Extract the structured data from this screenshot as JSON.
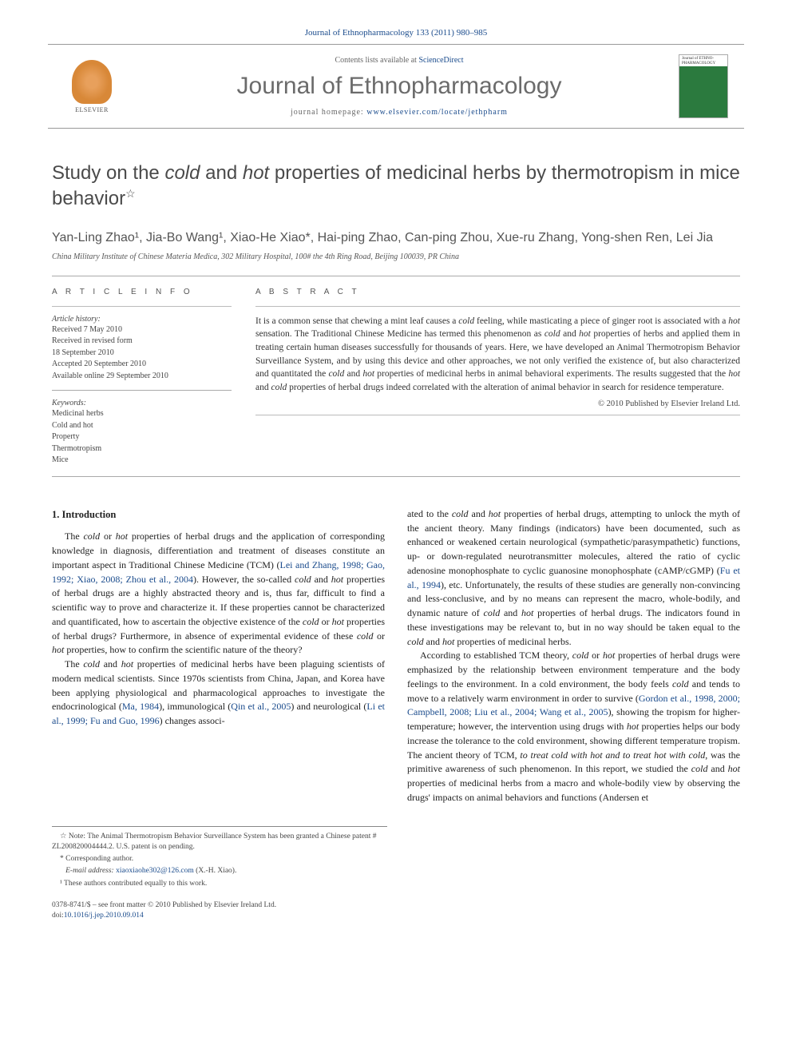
{
  "header": {
    "citation": "Journal of Ethnopharmacology 133 (2011) 980–985",
    "contents_prefix": "Contents lists available at ",
    "contents_link": "ScienceDirect",
    "journal_name": "Journal of Ethnopharmacology",
    "homepage_prefix": "journal homepage: ",
    "homepage_url": "www.elsevier.com/locate/jethpharm",
    "publisher_name": "ELSEVIER",
    "cover_caption": "Journal of ETHNO-PHARMACOLOGY"
  },
  "title": {
    "pre": "Study on the ",
    "cold": "cold",
    "and": " and ",
    "hot": "hot",
    "post": " properties of medicinal herbs by thermotropism in mice behavior",
    "star": "☆"
  },
  "authors": "Yan-Ling Zhao¹, Jia-Bo Wang¹, Xiao-He Xiao*, Hai-ping Zhao, Can-ping Zhou, Xue-ru Zhang, Yong-shen Ren, Lei Jia",
  "affiliation": "China Military Institute of Chinese Materia Medica, 302 Military Hospital, 100# the 4th Ring Road, Beijing 100039, PR China",
  "article_info": {
    "heading": "A R T I C L E   I N F O",
    "history_head": "Article history:",
    "received": "Received 7 May 2010",
    "revised": "Received in revised form",
    "revised_date": "18 September 2010",
    "accepted": "Accepted 20 September 2010",
    "online": "Available online 29 September 2010",
    "keywords_head": "Keywords:",
    "kw1": "Medicinal herbs",
    "kw2": "Cold and hot",
    "kw3": "Property",
    "kw4": "Thermotropism",
    "kw5": "Mice"
  },
  "abstract": {
    "heading": "A B S T R A C T",
    "text_parts": [
      "It is a common sense that chewing a mint leaf causes a ",
      "cold",
      " feeling, while masticating a piece of ginger root is associated with a ",
      "hot",
      " sensation. The Traditional Chinese Medicine has termed this phenomenon as ",
      "cold",
      " and ",
      "hot",
      " properties of herbs and applied them in treating certain human diseases successfully for thousands of years. Here, we have developed an Animal Thermotropism Behavior Surveillance System, and by using this device and other approaches, we not only verified the existence of, but also characterized and quantitated the ",
      "cold",
      " and ",
      "hot",
      " properties of medicinal herbs in animal behavioral experiments. The results suggested that the ",
      "hot",
      " and ",
      "cold",
      " properties of herbal drugs indeed correlated with the alteration of animal behavior in search for residence temperature."
    ],
    "copyright": "© 2010 Published by Elsevier Ireland Ltd."
  },
  "body": {
    "section_head": "1.  Introduction",
    "col1": {
      "p1_parts": [
        "The ",
        "cold",
        " or ",
        "hot",
        " properties of herbal drugs and the application of corresponding knowledge in diagnosis, differentiation and treatment of diseases constitute an important aspect in Traditional Chinese Medicine (TCM) (",
        "Lei and Zhang, 1998; Gao, 1992; Xiao, 2008; Zhou et al., 2004",
        "). However, the so-called ",
        "cold",
        " and ",
        "hot",
        " properties of herbal drugs are a highly abstracted theory and is, thus far, difficult to find a scientific way to prove and characterize it. If these properties cannot be characterized and quantificated, how to ascertain the objective existence of the ",
        "cold",
        " or ",
        "hot",
        " properties of herbal drugs? Furthermore, in absence of experimental evidence of these ",
        "cold",
        " or ",
        "hot",
        " properties, how to confirm the scientific nature of the theory?"
      ],
      "p2_parts": [
        "The ",
        "cold",
        " and ",
        "hot",
        " properties of medicinal herbs have been plaguing scientists of modern medical scientists. Since 1970s scientists from China, Japan, and Korea have been applying physiological and pharmacological approaches to investigate the endocrinological (",
        "Ma, 1984",
        "), immunological (",
        "Qin et al., 2005",
        ") and neurological (",
        "Li et al., 1999; Fu and Guo, 1996",
        ") changes associ-"
      ]
    },
    "col2": {
      "p1_parts": [
        "ated to the ",
        "cold",
        " and ",
        "hot",
        " properties of herbal drugs, attempting to unlock the myth of the ancient theory. Many findings (indicators) have been documented, such as enhanced or weakened certain neurological (sympathetic/parasympathetic) functions, up- or down-regulated neurotransmitter molecules, altered the ratio of cyclic adenosine monophosphate to cyclic guanosine monophosphate (cAMP/cGMP) (",
        "Fu et al., 1994",
        "), etc. Unfortunately, the results of these studies are generally non-convincing and less-conclusive, and by no means can represent the macro, whole-bodily, and dynamic nature of ",
        "cold",
        " and ",
        "hot",
        " properties of herbal drugs. The indicators found in these investigations may be relevant to, but in no way should be taken equal to the ",
        "cold",
        " and ",
        "hot",
        " properties of medicinal herbs."
      ],
      "p2_parts": [
        "According to established TCM theory, ",
        "cold",
        " or ",
        "hot",
        " properties of herbal drugs were emphasized by the relationship between environment temperature and the body feelings to the environment. In a cold environment, the body feels ",
        "cold",
        " and tends to move to a relatively warm environment in order to survive (",
        "Gordon et al., 1998, 2000; Campbell, 2008; Liu et al., 2004; Wang et al., 2005",
        "), showing the tropism for higher-temperature; however, the intervention using drugs with ",
        "hot",
        " properties helps our body increase the tolerance to the cold environment, showing different temperature tropism. The ancient theory of TCM, ",
        "to treat cold with hot and to treat hot with cold",
        ", was the primitive awareness of such phenomenon. In this report, we studied the ",
        "cold",
        " and ",
        "hot",
        " properties of medicinal herbs from a macro and whole-bodily view by observing the drugs' impacts on animal behaviors and functions (",
        "Andersen et"
      ]
    }
  },
  "footnotes": {
    "note": "☆  Note: The Animal Thermotropism Behavior Surveillance System has been granted a Chinese patent # ZL200820004444.2. U.S. patent is on pending.",
    "corr": "*  Corresponding author.",
    "email_label": "E-mail address: ",
    "email": "xiaoxiaohe302@126.com",
    "email_suffix": " (X.-H. Xiao).",
    "equal": "¹  These authors contributed equally to this work."
  },
  "doi": {
    "line1": "0378-8741/$ – see front matter © 2010 Published by Elsevier Ireland Ltd.",
    "prefix": "doi:",
    "link": "10.1016/j.jep.2010.09.014"
  },
  "colors": {
    "link": "#1a4b8c",
    "text": "#333333",
    "heading_gray": "#4a4a4a",
    "elsevier_orange": "#e8a05c"
  }
}
